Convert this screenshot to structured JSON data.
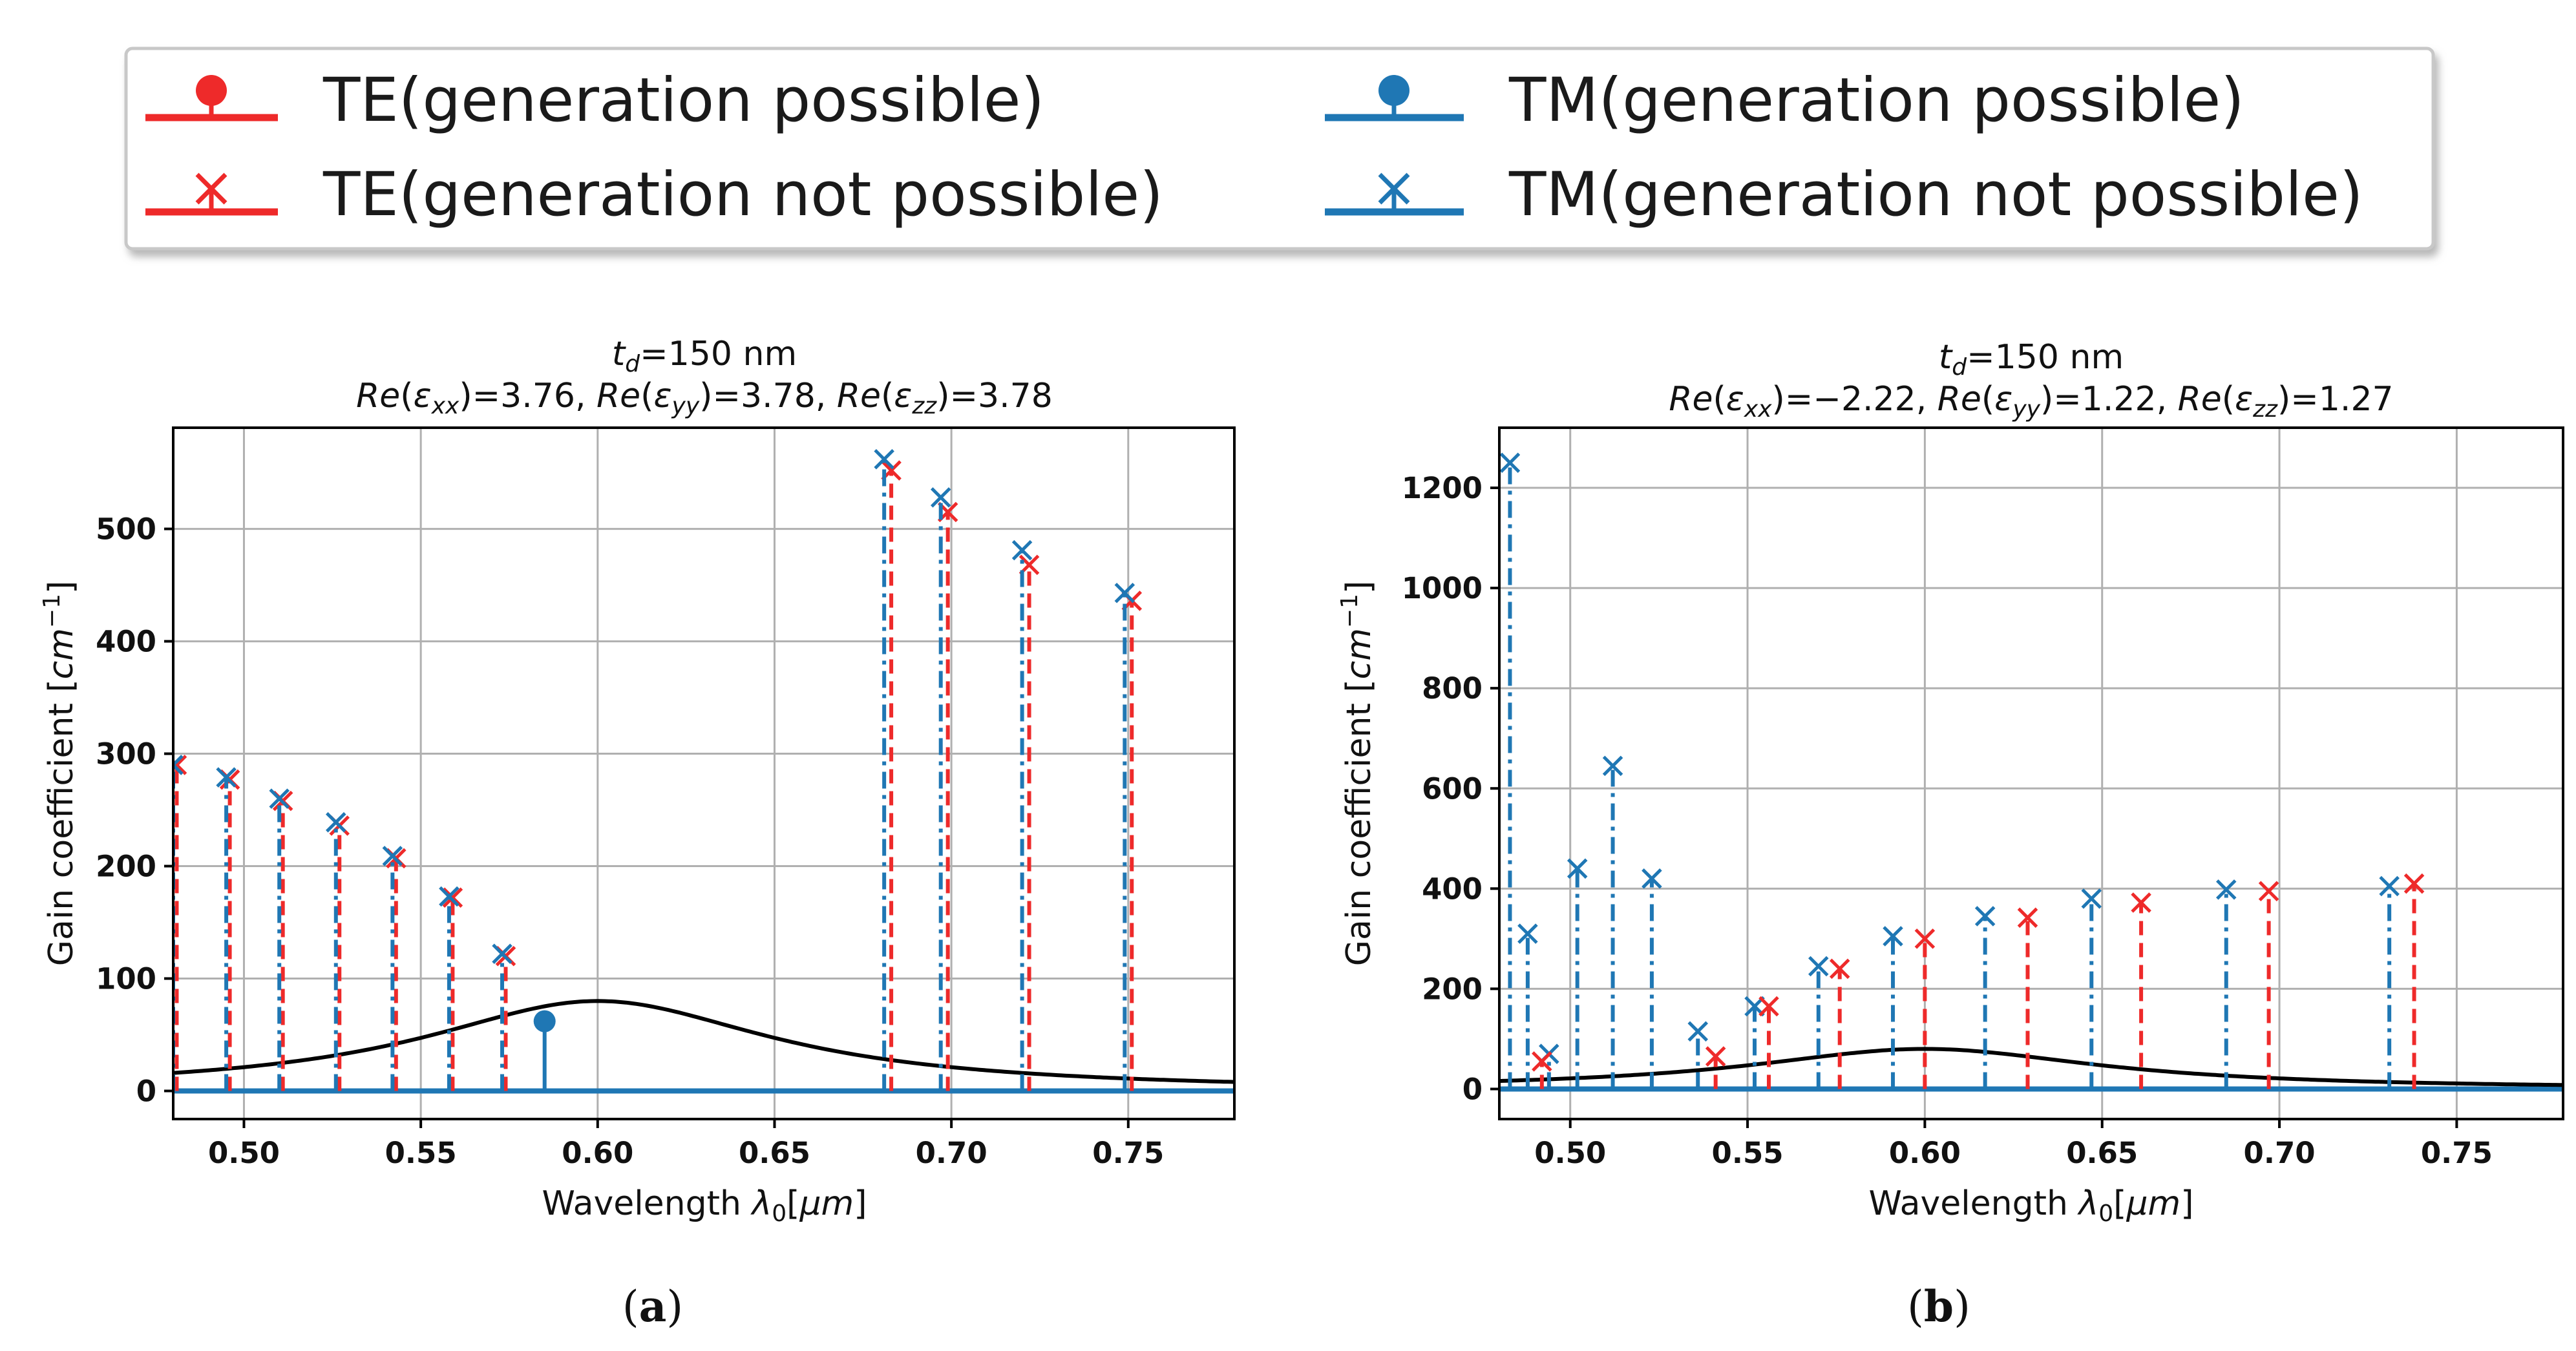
{
  "colors": {
    "te": "#ee2a2a",
    "tm": "#1f77b4",
    "gain": "#000000",
    "grid": "#b0b0b0"
  },
  "legend": {
    "entries": [
      {
        "label": "TE(generation possible)",
        "marker": "dot",
        "color": "te"
      },
      {
        "label": "TE(generation not possible)",
        "marker": "x",
        "color": "te"
      },
      {
        "label": "TM(generation possible)",
        "marker": "dot",
        "color": "tm"
      },
      {
        "label": "TM(generation not possible)",
        "marker": "x",
        "color": "tm"
      }
    ]
  },
  "chart_data": [
    {
      "type": "stem",
      "panel_label": "(a)",
      "title": "t_d=150 nm",
      "title_line2": "Re(εxx)=3.76, Re(εyy)=3.78, Re(εzz)=3.78",
      "xlabel": "Wavelength λ0[μm]",
      "ylabel": "Gain coefficient [cm^−1]",
      "xlim": [
        0.48,
        0.78
      ],
      "ylim": [
        -25,
        590
      ],
      "xticks": [
        0.5,
        0.55,
        0.6,
        0.65,
        0.7,
        0.75
      ],
      "xtick_labels": [
        "0.50",
        "0.55",
        "0.60",
        "0.65",
        "0.70",
        "0.75"
      ],
      "yticks": [
        0,
        100,
        200,
        300,
        400,
        500
      ],
      "ytick_labels": [
        "0",
        "100",
        "200",
        "300",
        "400",
        "500"
      ],
      "grid": true,
      "gain_curve": {
        "center": 0.6,
        "peak": 80,
        "half_width": 0.06
      },
      "series": [
        {
          "name": "TE(generation not possible)",
          "color": "te",
          "style": "dashed",
          "marker": "x",
          "points": [
            [
              0.481,
              290
            ],
            [
              0.496,
              277
            ],
            [
              0.511,
              258
            ],
            [
              0.527,
              236
            ],
            [
              0.543,
              207
            ],
            [
              0.559,
              172
            ],
            [
              0.574,
              120
            ],
            [
              0.683,
              552
            ],
            [
              0.699,
              515
            ],
            [
              0.722,
              468
            ],
            [
              0.751,
              436
            ]
          ]
        },
        {
          "name": "TM(generation not possible)",
          "color": "tm",
          "style": "dashdot",
          "marker": "x",
          "points": [
            [
              0.48,
              290
            ],
            [
              0.495,
              279
            ],
            [
              0.51,
              260
            ],
            [
              0.526,
              239
            ],
            [
              0.542,
              209
            ],
            [
              0.558,
              173
            ],
            [
              0.573,
              122
            ],
            [
              0.681,
              562
            ],
            [
              0.697,
              528
            ],
            [
              0.72,
              481
            ],
            [
              0.749,
              443
            ]
          ]
        },
        {
          "name": "TM(generation possible)",
          "color": "tm",
          "style": "solid",
          "marker": "dot",
          "points": [
            [
              0.585,
              62
            ]
          ]
        }
      ]
    },
    {
      "type": "stem",
      "panel_label": "(b)",
      "title": "t_d=150 nm",
      "title_line2": "Re(εxx)=−2.22, Re(εyy)=1.22, Re(εzz)=1.27",
      "xlabel": "Wavelength λ0[μm]",
      "ylabel": "Gain coefficient [cm^−1]",
      "xlim": [
        0.48,
        0.78
      ],
      "ylim": [
        -60,
        1320
      ],
      "xticks": [
        0.5,
        0.55,
        0.6,
        0.65,
        0.7,
        0.75
      ],
      "xtick_labels": [
        "0.50",
        "0.55",
        "0.60",
        "0.65",
        "0.70",
        "0.75"
      ],
      "yticks": [
        0,
        200,
        400,
        600,
        800,
        1000,
        1200
      ],
      "ytick_labels": [
        "0",
        "200",
        "400",
        "600",
        "800",
        "1000",
        "1200"
      ],
      "grid": true,
      "gain_curve": {
        "center": 0.6,
        "peak": 80,
        "half_width": 0.06
      },
      "series": [
        {
          "name": "TM(generation not possible)",
          "color": "tm",
          "style": "dashdot",
          "marker": "x",
          "points": [
            [
              0.483,
              1250
            ],
            [
              0.488,
              310
            ],
            [
              0.494,
              70
            ],
            [
              0.502,
              440
            ],
            [
              0.512,
              645
            ],
            [
              0.523,
              420
            ],
            [
              0.536,
              115
            ],
            [
              0.552,
              165
            ],
            [
              0.57,
              245
            ],
            [
              0.591,
              305
            ],
            [
              0.617,
              345
            ],
            [
              0.647,
              380
            ],
            [
              0.685,
              398
            ],
            [
              0.731,
              405
            ]
          ]
        },
        {
          "name": "TE(generation not possible)",
          "color": "te",
          "style": "dashed",
          "marker": "x",
          "points": [
            [
              0.492,
              55
            ],
            [
              0.541,
              65
            ],
            [
              0.556,
              165
            ],
            [
              0.576,
              240
            ],
            [
              0.6,
              300
            ],
            [
              0.629,
              342
            ],
            [
              0.661,
              372
            ],
            [
              0.697,
              395
            ],
            [
              0.738,
              410
            ]
          ]
        }
      ]
    }
  ]
}
